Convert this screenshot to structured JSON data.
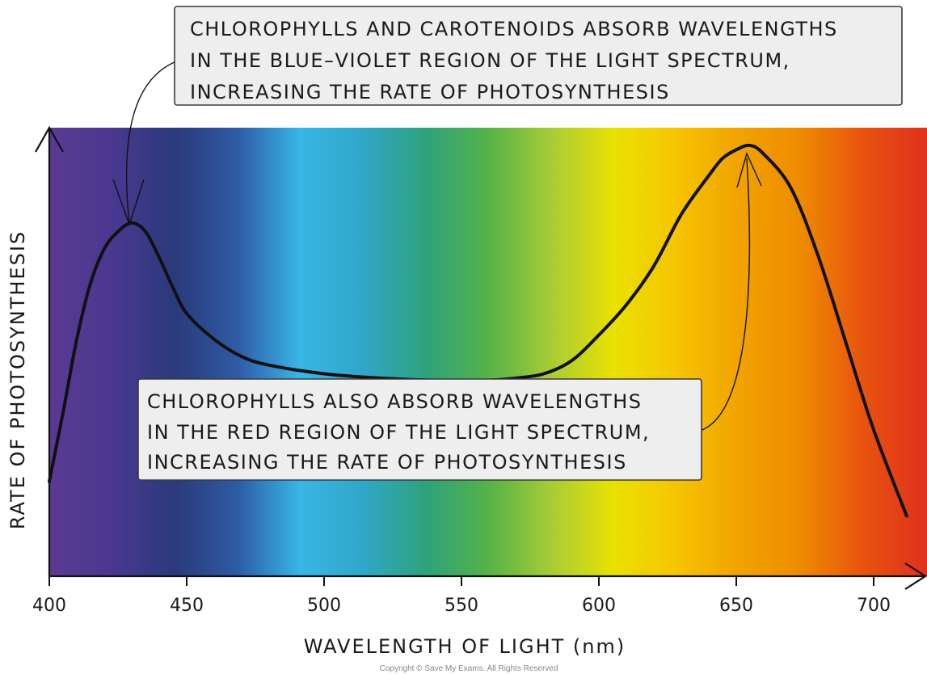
{
  "chart_data": {
    "type": "line",
    "xlabel": "WAVELENGTH OF LIGHT (nm)",
    "ylabel": "RATE OF PHOTOSYNTHESIS",
    "xlim": [
      400,
      720
    ],
    "x_ticks": [
      400,
      450,
      500,
      550,
      600,
      650,
      700
    ],
    "y_ticks": [],
    "background": "visible light spectrum (violet to red)",
    "series": [
      {
        "x": [
          400,
          405,
          410,
          415,
          420,
          425,
          430,
          435,
          440,
          445,
          450,
          460,
          470,
          480,
          500,
          520,
          540,
          560,
          570,
          580,
          590,
          600,
          610,
          620,
          630,
          640,
          645,
          650,
          655,
          660,
          670,
          680,
          690,
          700,
          712
        ],
        "y": [
          0.22,
          0.38,
          0.55,
          0.68,
          0.76,
          0.8,
          0.82,
          0.8,
          0.74,
          0.67,
          0.61,
          0.55,
          0.51,
          0.49,
          0.47,
          0.46,
          0.455,
          0.455,
          0.46,
          0.47,
          0.5,
          0.56,
          0.63,
          0.72,
          0.84,
          0.93,
          0.97,
          0.99,
          1.0,
          0.98,
          0.9,
          0.74,
          0.54,
          0.34,
          0.14
        ]
      }
    ],
    "annotations": [
      {
        "lines": [
          "CHLOROPHYLLS AND CAROTENOIDS ABSORB  WAVELENGTHS",
          "IN THE BLUE–VIOLET REGION OF THE LIGHT SPECTRUM,",
          "INCREASING THE RATE OF PHOTOSYNTHESIS"
        ],
        "points_to_x": 430
      },
      {
        "lines": [
          "CHLOROPHYLLS ALSO ABSORB WAVELENGTHS",
          "IN THE RED REGION OF THE LIGHT SPECTRUM,",
          "INCREASING THE RATE OF PHOTOSYNTHESIS"
        ],
        "points_to_x": 655
      }
    ],
    "footer": "Copyright © Save My Exams. All Rights Reserved"
  },
  "colors": {
    "curve": "#111111",
    "callout_fill": "#eeeeee",
    "callout_stroke": "#3a3a3a",
    "spectrum": [
      "#5a3a93",
      "#4a3890",
      "#2a3a7a",
      "#2f5aa5",
      "#38b6e6",
      "#30a7c9",
      "#2ea27c",
      "#54b248",
      "#a7cc36",
      "#e9e100",
      "#f6c400",
      "#f1a300",
      "#ee8a00",
      "#e8520f",
      "#e0301e"
    ]
  }
}
